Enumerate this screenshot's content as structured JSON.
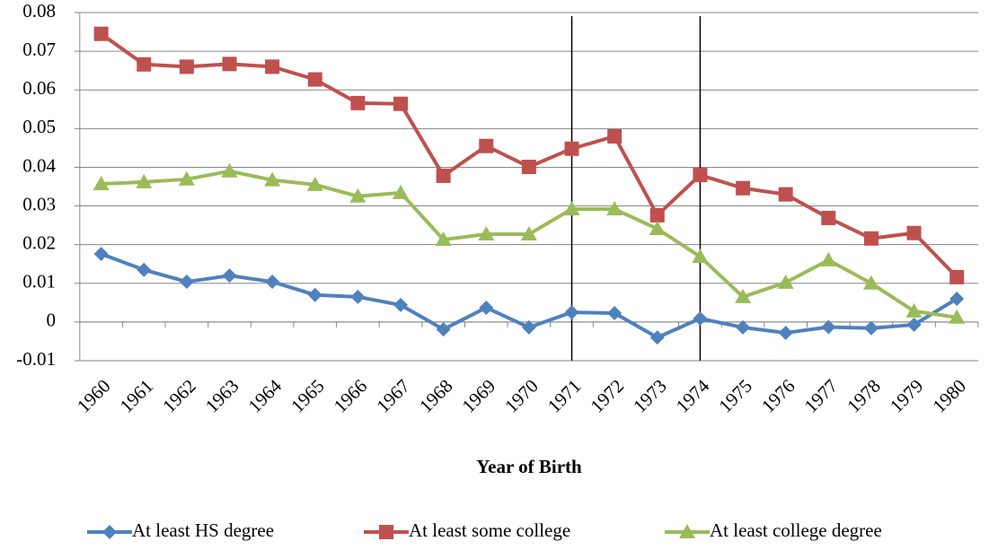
{
  "chart_data": {
    "type": "line",
    "x_label": "Year of Birth",
    "categories": [
      "1960",
      "1961",
      "1962",
      "1963",
      "1964",
      "1965",
      "1966",
      "1967",
      "1968",
      "1969",
      "1970",
      "1971",
      "1972",
      "1973",
      "1974",
      "1975",
      "1976",
      "1977",
      "1978",
      "1979",
      "1980"
    ],
    "series": [
      {
        "name": "At least HS degree",
        "color": "#4f81bd",
        "marker": "diamond",
        "values": [
          0.0176,
          0.0135,
          0.0104,
          0.012,
          0.0104,
          0.007,
          0.0065,
          0.0044,
          -0.0019,
          0.0037,
          -0.0014,
          0.0025,
          0.0023,
          -0.004,
          0.0009,
          -0.0014,
          -0.0028,
          -0.0013,
          -0.0016,
          -0.0007,
          0.006
        ]
      },
      {
        "name": "At least some college",
        "color": "#c0504d",
        "marker": "square",
        "values": [
          0.0745,
          0.0666,
          0.066,
          0.0667,
          0.066,
          0.0627,
          0.0566,
          0.0564,
          0.0378,
          0.0455,
          0.0401,
          0.0448,
          0.048,
          0.0276,
          0.038,
          0.0346,
          0.033,
          0.0269,
          0.0216,
          0.023,
          0.0116
        ]
      },
      {
        "name": "At least college degree",
        "color": "#9bbb59",
        "marker": "triangle",
        "values": [
          0.0357,
          0.0362,
          0.0369,
          0.039,
          0.0367,
          0.0355,
          0.0325,
          0.0334,
          0.0213,
          0.0227,
          0.0227,
          0.0292,
          0.0292,
          0.0241,
          0.0169,
          0.0065,
          0.0102,
          0.016,
          0.01,
          0.0028,
          0.0012
        ]
      }
    ],
    "vertical_lines": [
      "1971",
      "1974"
    ],
    "ylim": [
      -0.01,
      0.08
    ],
    "yticks": [
      -0.01,
      0,
      0.01,
      0.02,
      0.03,
      0.04,
      0.05,
      0.06,
      0.07,
      0.08
    ],
    "grid": true,
    "legend": "bottom"
  }
}
